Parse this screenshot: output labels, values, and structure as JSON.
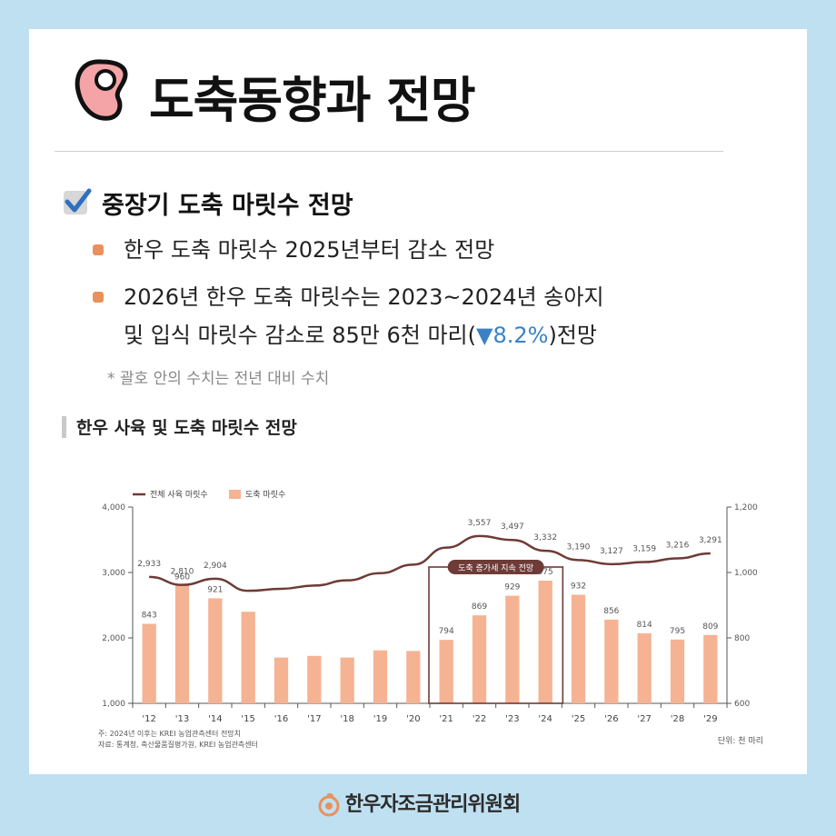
{
  "title": "도축동향과 전망",
  "section_title": "중장기 도축 마릿수 전망",
  "bullets": [
    {
      "text": "한우 도축 마릿수 2025년부터 감소 전망"
    },
    {
      "line1": "2026년 한우 도축 마릿수는 2023~2024년 송아지",
      "line2_pre": "및 입식 마릿수 감소로 85만 6천 마리(",
      "line2_change": "▼8.2%",
      "line2_post": ")전망"
    }
  ],
  "note": "* 괄호 안의 수치는 전년 대비 수치",
  "chart_heading": "한우 사육 및 도축 마릿수 전망",
  "footer_org": "한우자조금관리위원회",
  "colors": {
    "bar": "#f5b393",
    "line": "#6e3b36",
    "highlight_box": "#6e3b36",
    "bullet": "#e8915c",
    "decrease": "#3a82c4"
  },
  "chart_data": {
    "type": "bar+line",
    "categories": [
      "'12",
      "'13",
      "'14",
      "'15",
      "'16",
      "'17",
      "'18",
      "'19",
      "'20",
      "'21",
      "'22",
      "'23",
      "'24",
      "'25",
      "'26",
      "'27",
      "'28",
      "'29"
    ],
    "legend": {
      "line_name": "전체 사육 마릿수",
      "bar_name": "도축 마릿수",
      "placement": "top-left"
    },
    "line_series": {
      "name": "전체 사육 마릿수",
      "axis": "left",
      "values": [
        2933,
        2810,
        2904,
        2720,
        2750,
        2800,
        2880,
        2990,
        3120,
        3380,
        3557,
        3497,
        3332,
        3190,
        3127,
        3159,
        3216,
        3291
      ],
      "labels": [
        "2,933",
        "2,810",
        "2,904",
        "",
        "",
        "",
        "",
        "",
        "",
        "",
        "3,557",
        "3,497",
        "3,332",
        "3,190",
        "3,127",
        "3,159",
        "3,216",
        "3,291"
      ]
    },
    "bar_series": {
      "name": "도축 마릿수",
      "axis": "right",
      "values": [
        843,
        960,
        921,
        880,
        740,
        745,
        740,
        762,
        760,
        794,
        869,
        929,
        975,
        932,
        856,
        814,
        795,
        809
      ],
      "labels": [
        "843",
        "960",
        "921",
        "",
        "",
        "",
        "",
        "",
        "",
        "794",
        "869",
        "929",
        "975",
        "932",
        "856",
        "814",
        "795",
        "809"
      ]
    },
    "left_axis": {
      "ylim": [
        1000,
        4000
      ],
      "ticks": [
        "1,000",
        "2,000",
        "3,000",
        "4,000"
      ],
      "tick_values": [
        1000,
        2000,
        3000,
        4000
      ]
    },
    "right_axis": {
      "ylim": [
        600,
        1200
      ],
      "ticks": [
        "600",
        "800",
        "1,000",
        "1,200"
      ],
      "tick_values": [
        600,
        800,
        1000,
        1200
      ]
    },
    "highlight": {
      "label": "도축 증가세 지속 전망",
      "from": "'21",
      "to": "'24"
    },
    "footnotes": [
      "주: 2024년 이후는 KREI 농업관측센터 전망치",
      "자료: 통계청, 축산물품질평가원, KREI 농업관측센터"
    ],
    "unit": "단위: 천 마리",
    "grid": false
  }
}
